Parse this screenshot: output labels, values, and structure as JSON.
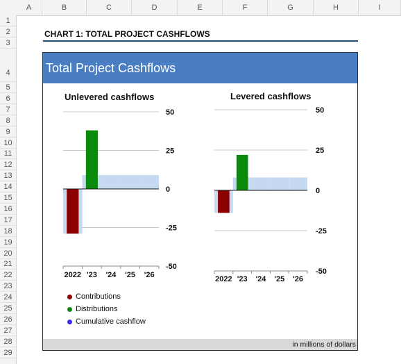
{
  "spreadsheet": {
    "columns": [
      "A",
      "B",
      "C",
      "D",
      "E",
      "F",
      "G",
      "H",
      "I"
    ],
    "rows": [
      "1",
      "2",
      "3",
      "4",
      "5",
      "6",
      "7",
      "8",
      "9",
      "10",
      "11",
      "12",
      "13",
      "14",
      "15",
      "16",
      "17",
      "18",
      "19",
      "20",
      "21",
      "22",
      "23",
      "24",
      "25",
      "26",
      "27",
      "28",
      "29"
    ]
  },
  "sheet_title": "CHART 1: TOTAL PROJECT CASHFLOWS",
  "chart_banner": "Total Project Cashflows",
  "footer_note": "in millions of dollars",
  "legend": [
    {
      "label": "Contributions",
      "color": "#8b0000"
    },
    {
      "label": "Distributions",
      "color": "#0a8a0a"
    },
    {
      "label": "Cumulative cashflow",
      "color": "#3b2df5"
    }
  ],
  "colors": {
    "contributions": "#8b0000",
    "distributions": "#0a8a0a",
    "cumulative": "#c5d9f1",
    "banner": "#4a7ec2"
  },
  "chart_data": [
    {
      "type": "bar",
      "title": "Unlevered cashflows",
      "categories": [
        "2022",
        "'23",
        "'24",
        "'25",
        "'26"
      ],
      "ylim": [
        -50,
        50
      ],
      "yticks": [
        50,
        25,
        0,
        -25,
        -50
      ],
      "grid": true,
      "series": [
        {
          "name": "Contributions",
          "values": [
            -29,
            0,
            0,
            0,
            0
          ]
        },
        {
          "name": "Distributions",
          "values": [
            0,
            38,
            0,
            0,
            0
          ]
        },
        {
          "name": "Cumulative cashflow",
          "values": [
            -29,
            9,
            9,
            9,
            9
          ]
        }
      ]
    },
    {
      "type": "bar",
      "title": "Levered cashflows",
      "categories": [
        "2022",
        "'23",
        "'24",
        "'25",
        "'26"
      ],
      "ylim": [
        -50,
        50
      ],
      "yticks": [
        50,
        25,
        0,
        -25,
        -50
      ],
      "grid": true,
      "series": [
        {
          "name": "Contributions",
          "values": [
            -14,
            0,
            0,
            0,
            0
          ]
        },
        {
          "name": "Distributions",
          "values": [
            0,
            22,
            0,
            0,
            0
          ]
        },
        {
          "name": "Cumulative cashflow",
          "values": [
            -14,
            8,
            8,
            8,
            8
          ]
        }
      ]
    }
  ]
}
